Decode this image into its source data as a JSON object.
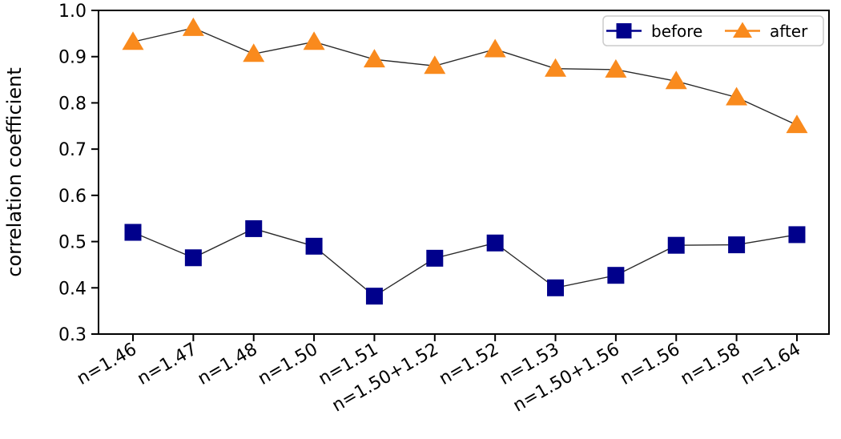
{
  "chart_data": {
    "type": "line",
    "title": "",
    "xlabel": "",
    "ylabel": "correlation coefficient",
    "ylim": [
      0.3,
      1.0
    ],
    "ytick_labels": [
      "0.3",
      "0.4",
      "0.5",
      "0.6",
      "0.7",
      "0.8",
      "0.9",
      "1.0"
    ],
    "yticks": [
      0.3,
      0.4,
      0.5,
      0.6,
      0.7,
      0.8,
      0.9,
      1.0
    ],
    "categories": [
      "n=1.46",
      "n=1.47",
      "n=1.48",
      "n=1.50",
      "n=1.51",
      "n=1.50+1.52",
      "n=1.52",
      "n=1.53",
      "n=1.50+1.56",
      "n=1.56",
      "n=1.58",
      "n=1.64"
    ],
    "x_tick_rotation_deg": 30,
    "grid": false,
    "connecting_line_color": "#2a2a2a",
    "series": [
      {
        "name": "before",
        "marker": "square",
        "color": "#00008B",
        "values": [
          0.52,
          0.465,
          0.528,
          0.49,
          0.382,
          0.464,
          0.497,
          0.4,
          0.427,
          0.492,
          0.493,
          0.515
        ]
      },
      {
        "name": "after",
        "marker": "triangle",
        "color": "#F98A1D",
        "values": [
          0.932,
          0.962,
          0.906,
          0.932,
          0.894,
          0.88,
          0.916,
          0.874,
          0.872,
          0.847,
          0.812,
          0.752
        ]
      }
    ],
    "legend": {
      "position": "upper right",
      "labels": [
        "before",
        "after"
      ]
    }
  }
}
